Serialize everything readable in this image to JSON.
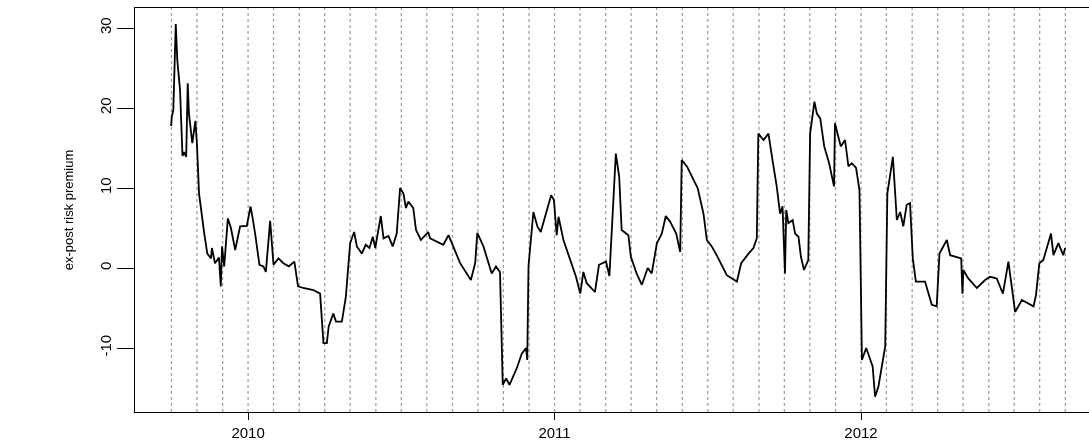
{
  "chart_data": {
    "type": "line",
    "ylabel": "ex-post risk premium",
    "xlim": [
      2009.631,
      2012.744
    ],
    "ylim": [
      -18,
      32.5
    ],
    "xticks": [
      2010,
      2011,
      2012
    ],
    "yticks": [
      -10,
      0,
      10,
      20,
      30
    ],
    "x": [
      2009.749,
      2009.751,
      2009.756,
      2009.764,
      2009.769,
      2009.778,
      2009.786,
      2009.791,
      2009.798,
      2009.803,
      2009.807,
      2009.818,
      2009.828,
      2009.833,
      2009.84,
      2009.857,
      2009.867,
      2009.879,
      2009.882,
      2009.892,
      2009.905,
      2009.911,
      2009.915,
      2009.922,
      2009.934,
      2009.944,
      2009.958,
      2009.974,
      2009.996,
      2010.008,
      2010.015,
      2010.023,
      2010.037,
      2010.05,
      2010.058,
      2010.072,
      2010.083,
      2010.099,
      2010.115,
      2010.133,
      2010.151,
      2010.163,
      2010.18,
      2010.213,
      2010.235,
      2010.246,
      2010.257,
      2010.263,
      2010.278,
      2010.287,
      2010.306,
      2010.319,
      2010.333,
      2010.346,
      2010.355,
      2010.371,
      2010.384,
      2010.396,
      2010.407,
      2010.415,
      2010.433,
      2010.442,
      2010.458,
      2010.472,
      2010.485,
      2010.496,
      2010.507,
      2010.515,
      2010.523,
      2010.539,
      2010.548,
      2010.564,
      2010.588,
      2010.594,
      2010.637,
      2010.654,
      2010.665,
      2010.692,
      2010.727,
      2010.741,
      2010.748,
      2010.768,
      2010.795,
      2010.809,
      2010.822,
      2010.831,
      2010.842,
      2010.853,
      2010.877,
      2010.893,
      2010.907,
      2010.911,
      2010.915,
      2010.931,
      2010.944,
      2010.955,
      2010.972,
      2010.989,
      2010.998,
      2011.007,
      2011.013,
      2011.029,
      2011.07,
      2011.084,
      2011.094,
      2011.105,
      2011.132,
      2011.145,
      2011.168,
      2011.179,
      2011.2,
      2011.211,
      2011.219,
      2011.241,
      2011.249,
      2011.268,
      2011.285,
      2011.304,
      2011.317,
      2011.334,
      2011.35,
      2011.363,
      2011.377,
      2011.397,
      2011.41,
      2011.415,
      2011.432,
      2011.467,
      2011.486,
      2011.497,
      2011.513,
      2011.529,
      2011.562,
      2011.595,
      2011.609,
      2011.633,
      2011.649,
      2011.66,
      2011.665,
      2011.682,
      2011.698,
      2011.712,
      2011.725,
      2011.736,
      2011.744,
      2011.752,
      2011.756,
      2011.763,
      2011.777,
      2011.785,
      2011.796,
      2011.804,
      2011.814,
      2011.828,
      2011.834,
      2011.848,
      2011.856,
      2011.867,
      2011.88,
      2011.896,
      2011.912,
      2011.915,
      2011.926,
      2011.934,
      2011.948,
      2011.959,
      2011.97,
      2011.984,
      2011.995,
      2012.003,
      2012.017,
      2012.038,
      2012.046,
      2012.057,
      2012.079,
      2012.086,
      2012.104,
      2012.117,
      2012.128,
      2012.138,
      2012.149,
      2012.16,
      2012.169,
      2012.179,
      2012.209,
      2012.231,
      2012.247,
      2012.256,
      2012.28,
      2012.291,
      2012.327,
      2012.331,
      2012.334,
      2012.35,
      2012.378,
      2012.405,
      2012.421,
      2012.443,
      2012.463,
      2012.481,
      2012.503,
      2012.525,
      2012.563,
      2012.571,
      2012.582,
      2012.595,
      2012.62,
      2012.628,
      2012.644,
      2012.66,
      2012.666
    ],
    "series": [
      {
        "color": "#000000",
        "values": [
          17.75,
          18.9,
          19.75,
          30.5,
          26,
          22.25,
          14,
          14.5,
          13.9,
          23.1,
          19.3,
          15.6,
          18.4,
          15.6,
          9.3,
          4.3,
          1.8,
          1.2,
          2.5,
          0.6,
          1.3,
          -2.3,
          2.7,
          0.2,
          6.2,
          5,
          2.25,
          5.2,
          5.25,
          7.7,
          6.2,
          4.3,
          0.4,
          0.2,
          -0.5,
          5.9,
          0.4,
          1.2,
          0.6,
          0.2,
          0.8,
          -2.3,
          -2.5,
          -2.75,
          -3.2,
          -9.4,
          -9.4,
          -7.3,
          -5.7,
          -6.7,
          -6.7,
          -3.6,
          3.1,
          4.5,
          2.7,
          1.8,
          2.9,
          2.5,
          3.9,
          2.5,
          6.5,
          3.7,
          4,
          2.7,
          4.3,
          10,
          9.3,
          7.5,
          8.3,
          7.5,
          4.75,
          3.5,
          4.5,
          3.7,
          2.9,
          4.1,
          3.1,
          0.6,
          -1.5,
          0.6,
          4.4,
          2.7,
          -0.7,
          0.2,
          -0.5,
          -14.6,
          -13.8,
          -14.6,
          -12.5,
          -10.7,
          -10,
          -11.5,
          0.2,
          7,
          5.2,
          4.5,
          6.8,
          9.1,
          8.5,
          4.1,
          6.4,
          3.5,
          -1.1,
          -3.2,
          -0.5,
          -1.9,
          -3,
          0.4,
          0.8,
          -1,
          14.3,
          11.4,
          4.75,
          4.1,
          1.4,
          -0.7,
          -2.1,
          0,
          -0.7,
          3.1,
          4.3,
          6.5,
          5.8,
          4.3,
          2,
          13.5,
          12.7,
          10,
          6.8,
          3.5,
          2.7,
          1.6,
          -0.9,
          -1.7,
          0.6,
          1.8,
          2.5,
          3.7,
          16.8,
          16,
          16.8,
          13.3,
          10.2,
          6.8,
          7.7,
          -0.7,
          7.25,
          5.6,
          6,
          4.3,
          3.9,
          1.4,
          -0.25,
          1,
          16.8,
          20.8,
          19.3,
          18.7,
          15.2,
          13.1,
          10.2,
          18.1,
          16.4,
          15.2,
          16,
          12.7,
          13.1,
          12.5,
          9.75,
          -11.5,
          -10,
          -12.3,
          -16.1,
          -14.8,
          -9.8,
          9.3,
          13.9,
          6,
          7,
          5.2,
          7.9,
          8.1,
          1.2,
          -1.7,
          -1.7,
          -4.6,
          -4.8,
          1.8,
          3.5,
          1.6,
          1.2,
          -3.2,
          -0.25,
          -1.3,
          -2.5,
          -1.5,
          -1.1,
          -1.3,
          -3.2,
          0.8,
          -5.5,
          -4,
          -4.8,
          -3.4,
          0.6,
          1,
          4.3,
          1.6,
          3.1,
          1.6,
          2.5
        ]
      }
    ],
    "ref_lines": [
      {
        "axis": "x",
        "value": 2009.75,
        "color": "#a0a0a0",
        "line_style": "dotted"
      },
      {
        "axis": "x",
        "value": 2009.833,
        "color": "#a0a0a0",
        "line_style": "dotted"
      },
      {
        "axis": "x",
        "value": 2009.917,
        "color": "#a0a0a0",
        "line_style": "dotted"
      },
      {
        "axis": "x",
        "value": 2010,
        "color": "#a0a0a0",
        "line_style": "dotted"
      },
      {
        "axis": "x",
        "value": 2010.083,
        "color": "#a0a0a0",
        "line_style": "dotted"
      },
      {
        "axis": "x",
        "value": 2010.167,
        "color": "#a0a0a0",
        "line_style": "dotted"
      },
      {
        "axis": "x",
        "value": 2010.25,
        "color": "#a0a0a0",
        "line_style": "dotted"
      },
      {
        "axis": "x",
        "value": 2010.333,
        "color": "#a0a0a0",
        "line_style": "dotted"
      },
      {
        "axis": "x",
        "value": 2010.417,
        "color": "#a0a0a0",
        "line_style": "dotted"
      },
      {
        "axis": "x",
        "value": 2010.5,
        "color": "#a0a0a0",
        "line_style": "dotted"
      },
      {
        "axis": "x",
        "value": 2010.583,
        "color": "#a0a0a0",
        "line_style": "dotted"
      },
      {
        "axis": "x",
        "value": 2010.667,
        "color": "#a0a0a0",
        "line_style": "dotted"
      },
      {
        "axis": "x",
        "value": 2010.75,
        "color": "#a0a0a0",
        "line_style": "dotted"
      },
      {
        "axis": "x",
        "value": 2010.833,
        "color": "#a0a0a0",
        "line_style": "dotted"
      },
      {
        "axis": "x",
        "value": 2010.917,
        "color": "#a0a0a0",
        "line_style": "dotted"
      },
      {
        "axis": "x",
        "value": 2011,
        "color": "#a0a0a0",
        "line_style": "dotted"
      },
      {
        "axis": "x",
        "value": 2011.083,
        "color": "#a0a0a0",
        "line_style": "dotted"
      },
      {
        "axis": "x",
        "value": 2011.167,
        "color": "#a0a0a0",
        "line_style": "dotted"
      },
      {
        "axis": "x",
        "value": 2011.25,
        "color": "#a0a0a0",
        "line_style": "dotted"
      },
      {
        "axis": "x",
        "value": 2011.333,
        "color": "#a0a0a0",
        "line_style": "dotted"
      },
      {
        "axis": "x",
        "value": 2011.417,
        "color": "#a0a0a0",
        "line_style": "dotted"
      },
      {
        "axis": "x",
        "value": 2011.5,
        "color": "#a0a0a0",
        "line_style": "dotted"
      },
      {
        "axis": "x",
        "value": 2011.583,
        "color": "#a0a0a0",
        "line_style": "dotted"
      },
      {
        "axis": "x",
        "value": 2011.667,
        "color": "#a0a0a0",
        "line_style": "dotted"
      },
      {
        "axis": "x",
        "value": 2011.75,
        "color": "#a0a0a0",
        "line_style": "dotted"
      },
      {
        "axis": "x",
        "value": 2011.833,
        "color": "#a0a0a0",
        "line_style": "dotted"
      },
      {
        "axis": "x",
        "value": 2011.917,
        "color": "#a0a0a0",
        "line_style": "dotted"
      },
      {
        "axis": "x",
        "value": 2012,
        "color": "#a0a0a0",
        "line_style": "dotted"
      },
      {
        "axis": "x",
        "value": 2012.083,
        "color": "#a0a0a0",
        "line_style": "dotted"
      },
      {
        "axis": "x",
        "value": 2012.167,
        "color": "#a0a0a0",
        "line_style": "dotted"
      },
      {
        "axis": "x",
        "value": 2012.25,
        "color": "#a0a0a0",
        "line_style": "dotted"
      },
      {
        "axis": "x",
        "value": 2012.333,
        "color": "#a0a0a0",
        "line_style": "dotted"
      },
      {
        "axis": "x",
        "value": 2012.417,
        "color": "#a0a0a0",
        "line_style": "dotted"
      },
      {
        "axis": "x",
        "value": 2012.5,
        "color": "#a0a0a0",
        "line_style": "dotted"
      },
      {
        "axis": "x",
        "value": 2012.583,
        "color": "#a0a0a0",
        "line_style": "dotted"
      },
      {
        "axis": "x",
        "value": 2012.667,
        "color": "#a0a0a0",
        "line_style": "dotted"
      }
    ]
  }
}
